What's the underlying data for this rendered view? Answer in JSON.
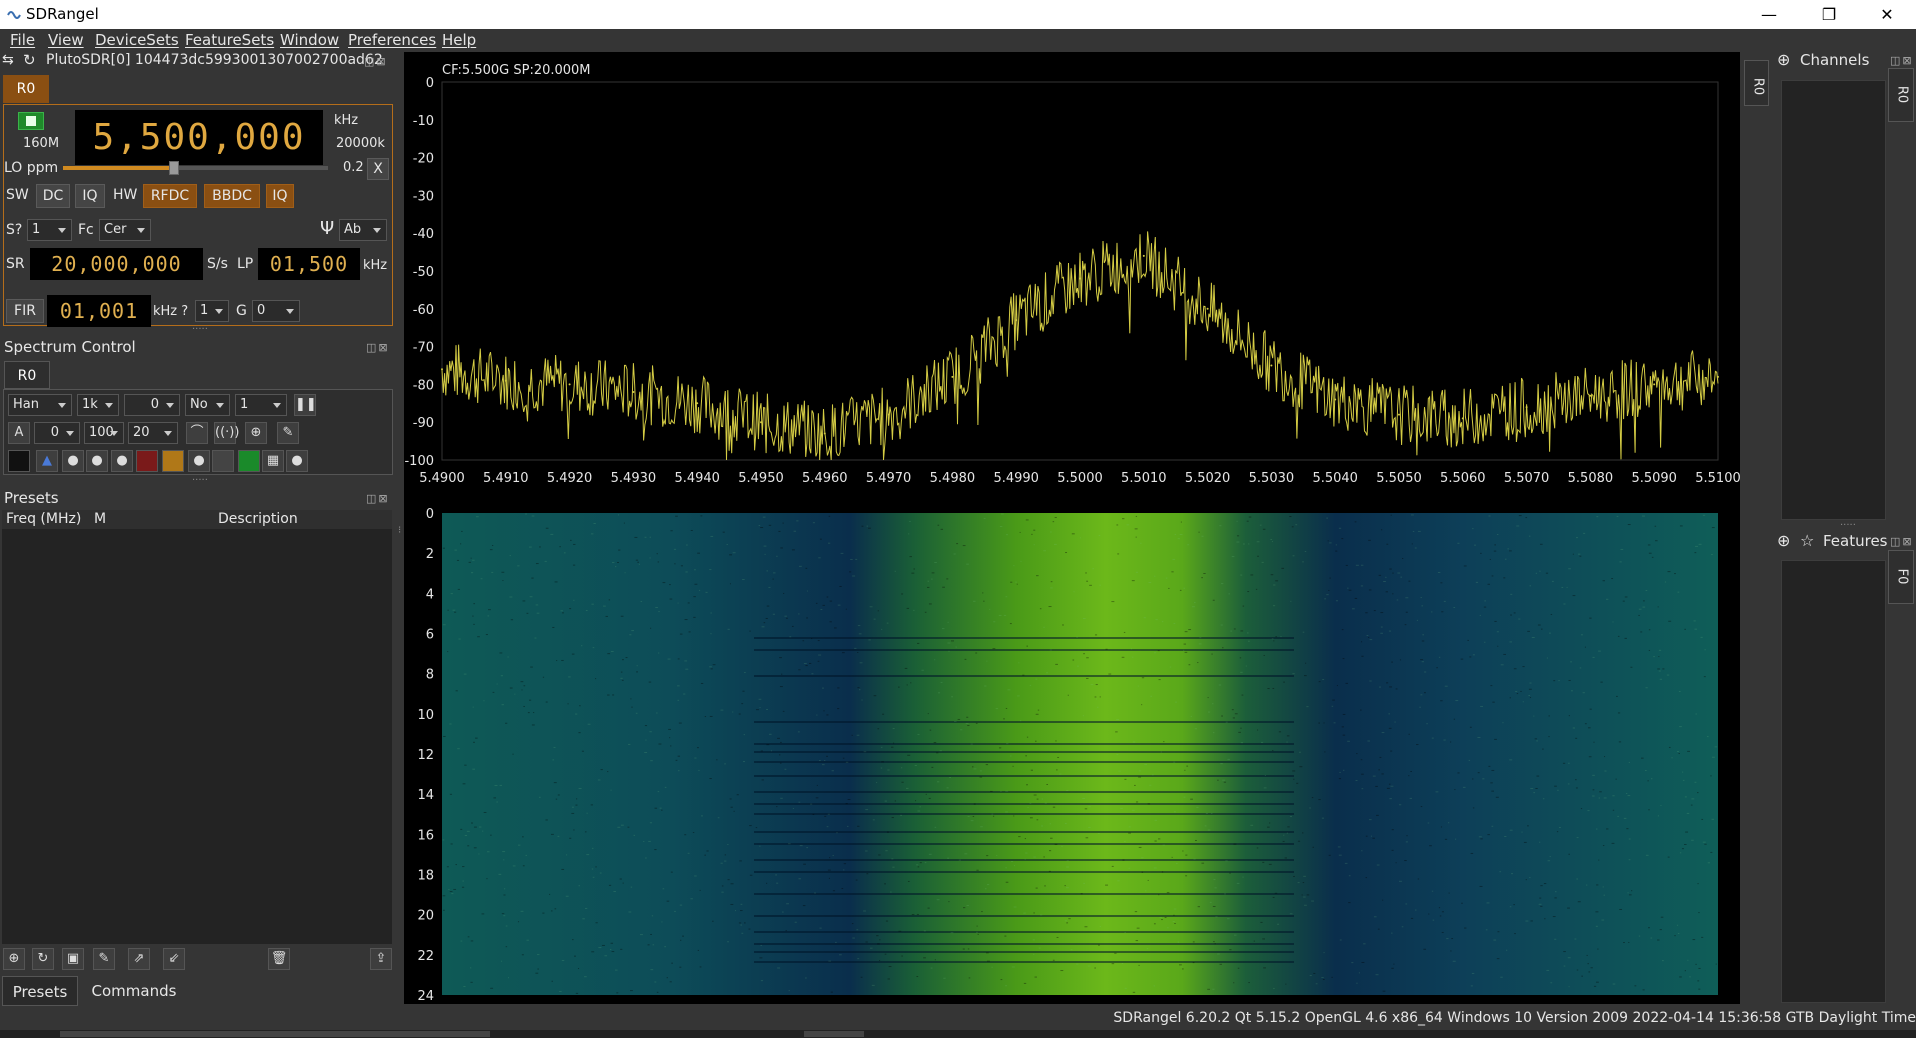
{
  "window": {
    "title": "SDRangel",
    "minimize": "—",
    "maximize": "❐",
    "close": "✕"
  },
  "menu": [
    "File",
    "View",
    "DeviceSets",
    "FeatureSets",
    "Window",
    "Preferences",
    "Help"
  ],
  "device": {
    "title": "PlutoSDR[0] 104473dc5993001307002700ad62",
    "tab": "R0",
    "center_freq": "5,500,000",
    "freq_unit": "kHz",
    "ghost_digits": "·̇ ̇̇ ̇̇  ̇ ̇ ̇",
    "bandwidth_label": "20000k",
    "range_label": "160M",
    "lo_label": "LO ppm",
    "lo_value": "0.2",
    "lo_slider_fraction": 0.42,
    "lo_reset": "X",
    "sw_label": "SW",
    "dc": "DC",
    "iq": "IQ",
    "hw_label": "HW",
    "rfdc": "RFDC",
    "bbdc": "BBDC",
    "hw_iq": "IQ",
    "s_label": "S?",
    "s_value": "1",
    "fc_label": "Fc",
    "fc_value": "Cer",
    "antenna_value": "Ab",
    "sr_label": "SR",
    "sr_value": "20,000,000",
    "sr_unit": "S/s",
    "lp_label": "LP",
    "lp_value": "01,500",
    "lp_unit": "kHz",
    "fir_label": "FIR",
    "fir_value": "01,001",
    "fir_unit": "kHz ?",
    "fir_gain": "1",
    "g_label": "G",
    "g_value": "0"
  },
  "spectrum_control": {
    "title": "Spectrum Control",
    "tab": "R0",
    "window": "Han",
    "fft_size": "1k",
    "ref": "0",
    "avg_mode": "No",
    "avg": "1",
    "a_label": "A",
    "a_value": "0",
    "range": "100",
    "fps": "20"
  },
  "presets": {
    "title": "Presets",
    "columns": [
      "Freq (MHz)",
      "M",
      "Description"
    ],
    "tabs": [
      "Presets",
      "Commands"
    ]
  },
  "spectrum": {
    "info": "CF:5.500G SP:20.000M",
    "y_ticks": [
      "0",
      "-10",
      "-20",
      "-30",
      "-40",
      "-50",
      "-60",
      "-70",
      "-80",
      "-90",
      "-100"
    ],
    "x_ticks": [
      "5.4900",
      "5.4910",
      "5.4920",
      "5.4930",
      "5.4940",
      "5.4950",
      "5.4960",
      "5.4970",
      "5.4980",
      "5.4990",
      "5.5000",
      "5.5010",
      "5.5020",
      "5.5030",
      "5.5040",
      "5.5050",
      "5.5060",
      "5.5070",
      "5.5080",
      "5.5090",
      "5.5100"
    ],
    "waterfall_ticks": [
      "0",
      "2",
      "4",
      "6",
      "8",
      "10",
      "12",
      "14",
      "16",
      "18",
      "20",
      "22",
      "24"
    ],
    "trace_color": "#d4cc44"
  },
  "chart_data": {
    "type": "line",
    "xlabel": "",
    "ylabel": "",
    "xlim": [
      5.49,
      5.51
    ],
    "ylim": [
      -100,
      0
    ],
    "x": [
      5.49,
      5.491,
      5.492,
      5.493,
      5.494,
      5.495,
      5.496,
      5.497,
      5.498,
      5.499,
      5.5,
      5.501,
      5.502,
      5.503,
      5.504,
      5.505,
      5.506,
      5.507,
      5.508,
      5.509,
      5.51
    ],
    "series": [
      {
        "values": [
          -76,
          -79,
          -80,
          -82,
          -85,
          -90,
          -93,
          -88,
          -78,
          -63,
          -52,
          -46,
          -60,
          -75,
          -84,
          -88,
          -89,
          -86,
          -83,
          -80,
          -78
        ]
      }
    ]
  },
  "right": {
    "channels": "Channels",
    "features": "Features",
    "channels_tab": "R0",
    "features_tab": "F0",
    "top_tab": "R0"
  },
  "status": "SDRangel 6.20.2 Qt 5.15.2 OpenGL 4.6 x86_64 Windows 10 Version 2009  2022-04-14 15:36:58 GTB Daylight Time"
}
